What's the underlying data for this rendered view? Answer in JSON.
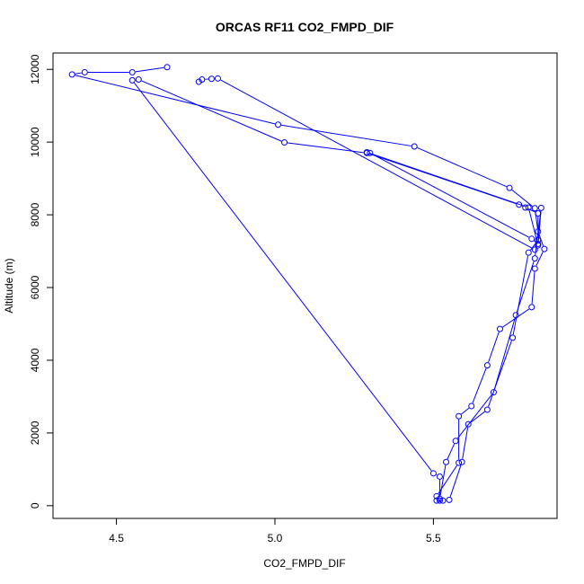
{
  "chart_data": {
    "type": "line",
    "title": "ORCAS RF11 CO2_FMPD_DIF",
    "xlabel": "CO2_FMPD_DIF",
    "ylabel": "Altitude (m)",
    "xlim": [
      4.3,
      5.89
    ],
    "ylim": [
      -350,
      12450
    ],
    "xticks": [
      4.5,
      5.0,
      5.5
    ],
    "xtick_labels": [
      "4.5",
      "5.0",
      "5.5"
    ],
    "yticks": [
      0,
      2000,
      4000,
      6000,
      8000,
      10000,
      12000
    ],
    "ytick_labels": [
      "0",
      "2000",
      "4000",
      "6000",
      "8000",
      "10000",
      "12000"
    ],
    "grid": false,
    "legend": "none",
    "line_color": "#0000ff",
    "marker": "open-circle",
    "series": [
      {
        "name": "",
        "x": [
          4.66,
          4.55,
          4.4,
          4.36,
          5.01,
          5.44,
          5.74,
          5.82,
          5.83,
          5.85,
          5.82,
          5.81,
          5.71,
          5.67,
          5.62,
          5.58,
          5.58,
          5.51,
          5.51,
          5.52,
          5.53,
          5.55,
          5.59,
          5.61,
          5.67,
          5.75,
          5.8,
          5.83,
          5.83,
          5.79,
          5.77,
          5.29,
          5.03,
          4.57,
          4.55,
          5.5,
          5.52,
          5.52,
          5.54,
          5.57,
          5.69,
          5.76,
          5.82,
          5.84,
          5.83,
          5.8,
          5.29,
          5.3,
          5.81,
          5.83,
          5.82,
          4.82,
          4.8,
          4.77,
          4.76
        ],
        "y": [
          12060,
          11920,
          11920,
          11860,
          10480,
          9880,
          8740,
          8180,
          7540,
          7060,
          6520,
          5460,
          4860,
          3860,
          2740,
          2460,
          1180,
          260,
          140,
          140,
          140,
          160,
          1200,
          2240,
          2640,
          4620,
          6960,
          7300,
          8040,
          8200,
          8280,
          9700,
          9990,
          11720,
          11700,
          890,
          800,
          190,
          1200,
          1780,
          3120,
          5240,
          6800,
          8190,
          7160,
          8200,
          9720,
          9700,
          7340,
          7200,
          7040,
          11750,
          11740,
          11720,
          11660
        ]
      }
    ]
  }
}
